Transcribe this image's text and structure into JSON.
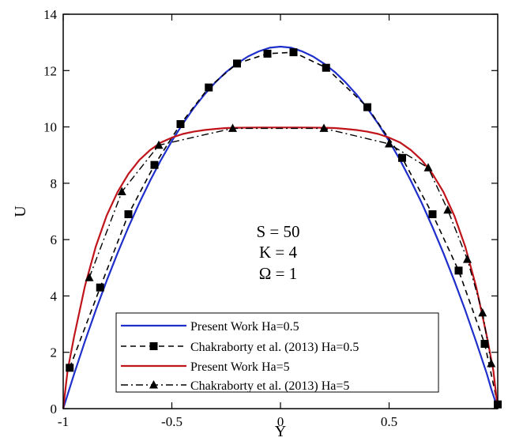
{
  "chart_data": {
    "type": "line",
    "title": "",
    "xlabel": "Y",
    "ylabel": "U",
    "xlim": [
      -1,
      1
    ],
    "ylim": [
      0,
      14
    ],
    "x_ticks": [
      -1,
      -0.5,
      0,
      0.5
    ],
    "x_tick_labels": [
      "-1",
      "-0.5",
      "0",
      "0.5"
    ],
    "y_ticks": [
      0,
      2,
      4,
      6,
      8,
      10,
      12,
      14
    ],
    "y_tick_labels": [
      "0",
      "2",
      "4",
      "6",
      "8",
      "10",
      "12",
      "14"
    ],
    "grid": false,
    "annotations": [
      "S = 50",
      "K = 4",
      "Ω = 1"
    ],
    "legend_position": "bottom-center",
    "series": [
      {
        "name": "Present Work Ha=0.5",
        "style": "solid-line",
        "color": "#1f2fcc",
        "x": [
          -1.0,
          -0.95,
          -0.9,
          -0.85,
          -0.8,
          -0.75,
          -0.7,
          -0.65,
          -0.6,
          -0.55,
          -0.5,
          -0.45,
          -0.4,
          -0.35,
          -0.3,
          -0.25,
          -0.2,
          -0.15,
          -0.1,
          -0.05,
          0.0,
          0.05,
          0.1,
          0.15,
          0.2,
          0.25,
          0.3,
          0.35,
          0.4,
          0.45,
          0.5,
          0.55,
          0.6,
          0.65,
          0.7,
          0.75,
          0.8,
          0.85,
          0.9,
          0.95,
          0.97,
          1.0
        ],
        "y": [
          0.0,
          1.23,
          2.39,
          3.5,
          4.54,
          5.52,
          6.44,
          7.3,
          8.09,
          8.83,
          9.5,
          10.11,
          10.66,
          11.15,
          11.58,
          11.95,
          12.25,
          12.5,
          12.68,
          12.81,
          12.85,
          12.81,
          12.68,
          12.5,
          12.25,
          11.95,
          11.58,
          11.15,
          10.66,
          10.11,
          9.5,
          8.83,
          8.09,
          7.3,
          6.44,
          5.52,
          4.54,
          3.5,
          2.39,
          1.23,
          0.7,
          0.0
        ]
      },
      {
        "name": "Chakraborty et al. (2013) Ha=0.5",
        "style": "dashed-line-square-markers",
        "color": "#000000",
        "x": [
          -0.97,
          -0.83,
          -0.7,
          -0.58,
          -0.46,
          -0.33,
          -0.2,
          -0.06,
          0.06,
          0.21,
          0.4,
          0.56,
          0.7,
          0.82,
          0.94,
          1.0
        ],
        "y": [
          1.45,
          4.3,
          6.9,
          8.65,
          10.1,
          11.4,
          12.25,
          12.6,
          12.65,
          12.1,
          10.7,
          8.9,
          6.9,
          4.9,
          2.3,
          0.15
        ]
      },
      {
        "name": "Present Work Ha=5",
        "style": "solid-line",
        "color": "#c0141b",
        "x": [
          -1.0,
          -0.98,
          -0.95,
          -0.9,
          -0.85,
          -0.8,
          -0.75,
          -0.7,
          -0.65,
          -0.6,
          -0.55,
          -0.5,
          -0.45,
          -0.4,
          -0.35,
          -0.3,
          -0.25,
          -0.2,
          -0.1,
          0.0,
          0.1,
          0.2,
          0.25,
          0.3,
          0.35,
          0.4,
          0.45,
          0.5,
          0.55,
          0.6,
          0.65,
          0.7,
          0.75,
          0.8,
          0.85,
          0.9,
          0.95,
          0.98,
          1.0
        ],
        "y": [
          0.0,
          1.34,
          2.56,
          4.35,
          5.76,
          6.85,
          7.69,
          8.33,
          8.82,
          9.18,
          9.45,
          9.62,
          9.75,
          9.83,
          9.89,
          9.93,
          9.96,
          9.97,
          9.98,
          9.98,
          9.98,
          9.97,
          9.96,
          9.93,
          9.89,
          9.83,
          9.75,
          9.62,
          9.45,
          9.18,
          8.82,
          8.33,
          7.69,
          6.85,
          5.76,
          4.35,
          2.56,
          1.34,
          0.0
        ]
      },
      {
        "name": "Chakraborty et al. (2013) Ha=5",
        "style": "dashdot-line-triangle-markers",
        "color": "#000000",
        "x": [
          -0.88,
          -0.73,
          -0.56,
          -0.22,
          0.2,
          0.5,
          0.68,
          0.77,
          0.86,
          0.93,
          0.97
        ],
        "y": [
          4.65,
          7.7,
          9.35,
          9.95,
          9.95,
          9.4,
          8.55,
          7.05,
          5.3,
          3.4,
          1.6
        ]
      }
    ]
  }
}
